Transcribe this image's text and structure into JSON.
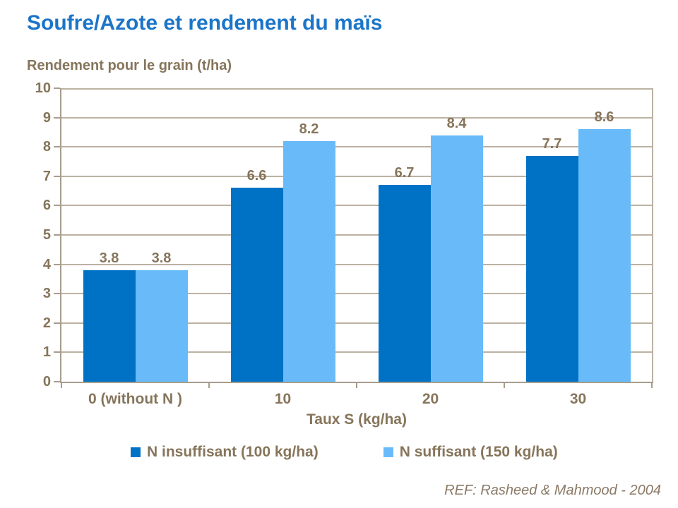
{
  "slide": {
    "title": "Soufre/Azote et rendement du maïs",
    "reference": "REF: Rasheed & Mahmood - 2004"
  },
  "colors": {
    "title": "#1B75C8",
    "text": "#86755B",
    "ref": "#8A7A66",
    "grid": "#BCB2A3",
    "axis": "#A89D8C",
    "series1": "#0072C6",
    "series2": "#68BBF8"
  },
  "chart_data": {
    "type": "bar",
    "title": "Soufre/Azote et rendement du maïs",
    "ylabel": "Rendement pour le grain (t/ha)",
    "xlabel": "Taux S (kg/ha)",
    "categories": [
      "0 (without N )",
      "10",
      "20",
      "30"
    ],
    "series": [
      {
        "name": "N insuffisant (100 kg/ha)",
        "color": "#0072C6",
        "values": [
          3.8,
          6.6,
          6.7,
          7.7
        ]
      },
      {
        "name": "N suffisant (150 kg/ha)",
        "color": "#68BBF8",
        "values": [
          3.8,
          8.2,
          8.4,
          8.6
        ]
      }
    ],
    "ylim": [
      0,
      10
    ],
    "ytick_step": 1,
    "grid": true,
    "value_labels": true,
    "legend_position": "bottom"
  }
}
